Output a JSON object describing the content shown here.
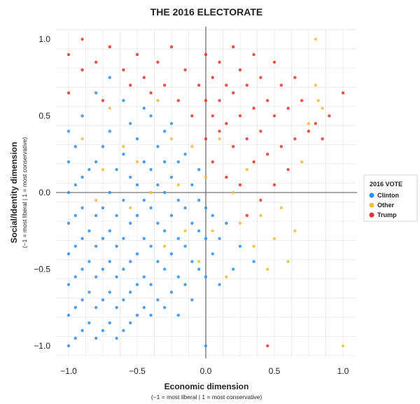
{
  "chart_data": {
    "type": "scatter",
    "title": "THE 2016 ELECTORATE",
    "xlabel": "Economic dimension",
    "xlabel_note": "(−1 = most liberal | 1 = most conservative)",
    "ylabel": "Social/Identity dimension",
    "ylabel_note": "(−1 = most liberal | 1 = most conservative)",
    "xlim": [
      -1.0,
      1.0
    ],
    "ylim": [
      -1.0,
      1.0
    ],
    "x_ticks": [
      -1.0,
      -0.5,
      0.0,
      0.5,
      1.0
    ],
    "x_tick_labels": [
      "−1.0",
      "−0.5",
      "0.0",
      "0.5",
      "1.0"
    ],
    "y_ticks": [
      -1.0,
      -0.5,
      0.0,
      0.5,
      1.0
    ],
    "y_tick_labels": [
      "−1.0",
      "−0.5",
      "0.0",
      "0.5",
      "1.0"
    ],
    "grid": true,
    "legend": {
      "title": "2016 VOTE",
      "position": "right"
    },
    "series": [
      {
        "name": "Clinton",
        "color": "#2e8fe6",
        "points": [
          [
            -1.0,
            -1.0
          ],
          [
            -1.0,
            -0.8
          ],
          [
            -1.0,
            -0.6
          ],
          [
            -1.0,
            -0.4
          ],
          [
            -1.0,
            -0.2
          ],
          [
            -1.0,
            0.0
          ],
          [
            -1.0,
            0.2
          ],
          [
            -1.0,
            0.4
          ],
          [
            -0.95,
            -0.95
          ],
          [
            -0.95,
            -0.75
          ],
          [
            -0.95,
            -0.55
          ],
          [
            -0.95,
            -0.35
          ],
          [
            -0.95,
            -0.15
          ],
          [
            -0.95,
            0.05
          ],
          [
            -0.95,
            0.3
          ],
          [
            -0.9,
            -0.9
          ],
          [
            -0.9,
            -0.7
          ],
          [
            -0.9,
            -0.5
          ],
          [
            -0.9,
            -0.3
          ],
          [
            -0.9,
            -0.1
          ],
          [
            -0.9,
            0.1
          ],
          [
            -0.9,
            0.5
          ],
          [
            -0.85,
            -0.85
          ],
          [
            -0.85,
            -0.65
          ],
          [
            -0.85,
            -0.45
          ],
          [
            -0.85,
            -0.25
          ],
          [
            -0.85,
            0.15
          ],
          [
            -0.8,
            -0.95
          ],
          [
            -0.8,
            -0.75
          ],
          [
            -0.8,
            -0.55
          ],
          [
            -0.8,
            -0.35
          ],
          [
            -0.8,
            -0.15
          ],
          [
            -0.8,
            0.2
          ],
          [
            -0.8,
            0.65
          ],
          [
            -0.75,
            -0.9
          ],
          [
            -0.75,
            -0.7
          ],
          [
            -0.75,
            -0.5
          ],
          [
            -0.75,
            -0.3
          ],
          [
            -0.75,
            -0.1
          ],
          [
            -0.75,
            0.3
          ],
          [
            -0.7,
            -0.85
          ],
          [
            -0.7,
            -0.65
          ],
          [
            -0.7,
            -0.45
          ],
          [
            -0.7,
            -0.25
          ],
          [
            -0.7,
            0.0
          ],
          [
            -0.7,
            0.4
          ],
          [
            -0.7,
            0.75
          ],
          [
            -0.65,
            -0.95
          ],
          [
            -0.65,
            -0.75
          ],
          [
            -0.65,
            -0.55
          ],
          [
            -0.65,
            -0.35
          ],
          [
            -0.65,
            -0.15
          ],
          [
            -0.65,
            0.15
          ],
          [
            -0.6,
            -0.9
          ],
          [
            -0.6,
            -0.7
          ],
          [
            -0.6,
            -0.5
          ],
          [
            -0.6,
            -0.3
          ],
          [
            -0.6,
            -0.05
          ],
          [
            -0.6,
            0.25
          ],
          [
            -0.6,
            0.6
          ],
          [
            -0.55,
            -0.85
          ],
          [
            -0.55,
            -0.65
          ],
          [
            -0.55,
            -0.45
          ],
          [
            -0.55,
            -0.2
          ],
          [
            -0.55,
            0.1
          ],
          [
            -0.55,
            0.45
          ],
          [
            -0.5,
            -0.8
          ],
          [
            -0.5,
            -0.6
          ],
          [
            -0.5,
            -0.4
          ],
          [
            -0.5,
            -0.15
          ],
          [
            -0.5,
            0.05
          ],
          [
            -0.5,
            0.35
          ],
          [
            -0.45,
            -0.75
          ],
          [
            -0.45,
            -0.55
          ],
          [
            -0.45,
            -0.3
          ],
          [
            -0.45,
            -0.05
          ],
          [
            -0.45,
            0.2
          ],
          [
            -0.45,
            0.55
          ],
          [
            -0.4,
            -0.8
          ],
          [
            -0.4,
            -0.6
          ],
          [
            -0.4,
            -0.35
          ],
          [
            -0.4,
            -0.1
          ],
          [
            -0.4,
            0.15
          ],
          [
            -0.4,
            0.5
          ],
          [
            -0.35,
            -0.7
          ],
          [
            -0.35,
            -0.45
          ],
          [
            -0.35,
            -0.2
          ],
          [
            -0.35,
            0.05
          ],
          [
            -0.35,
            0.3
          ],
          [
            -0.3,
            -0.75
          ],
          [
            -0.3,
            -0.5
          ],
          [
            -0.3,
            -0.25
          ],
          [
            -0.3,
            0.0
          ],
          [
            -0.3,
            0.2
          ],
          [
            -0.3,
            0.4
          ],
          [
            -0.25,
            -0.65
          ],
          [
            -0.25,
            -0.4
          ],
          [
            -0.25,
            -0.15
          ],
          [
            -0.25,
            0.1
          ],
          [
            -0.25,
            0.45
          ],
          [
            -0.2,
            -0.8
          ],
          [
            -0.2,
            -0.55
          ],
          [
            -0.2,
            -0.3
          ],
          [
            -0.2,
            -0.05
          ],
          [
            -0.2,
            0.2
          ],
          [
            -0.15,
            -0.6
          ],
          [
            -0.15,
            -0.35
          ],
          [
            -0.15,
            -0.1
          ],
          [
            -0.15,
            0.25
          ],
          [
            -0.1,
            -0.7
          ],
          [
            -0.1,
            -0.45
          ],
          [
            -0.1,
            -0.2
          ],
          [
            -0.1,
            0.05
          ],
          [
            -0.05,
            -0.5
          ],
          [
            -0.05,
            -0.25
          ],
          [
            -0.05,
            -0.05
          ],
          [
            -0.05,
            0.15
          ],
          [
            0.0,
            -1.0
          ],
          [
            0.0,
            -0.55
          ],
          [
            0.0,
            -0.3
          ],
          [
            0.0,
            -0.1
          ],
          [
            0.05,
            -0.4
          ],
          [
            0.05,
            -0.15
          ],
          [
            0.1,
            -0.6
          ],
          [
            0.1,
            -0.3
          ],
          [
            0.15,
            -0.2
          ],
          [
            0.2,
            -0.5
          ],
          [
            0.25,
            -0.35
          ],
          [
            0.35,
            -0.45
          ]
        ]
      },
      {
        "name": "Other",
        "color": "#e8c13e",
        "points": [
          [
            -0.9,
            0.35
          ],
          [
            -0.8,
            -0.05
          ],
          [
            -0.75,
            0.15
          ],
          [
            -0.7,
            0.55
          ],
          [
            -0.6,
            0.3
          ],
          [
            -0.55,
            -0.1
          ],
          [
            -0.5,
            0.2
          ],
          [
            -0.4,
            0.0
          ],
          [
            -0.35,
            0.6
          ],
          [
            -0.3,
            -0.35
          ],
          [
            -0.25,
            0.35
          ],
          [
            -0.2,
            0.05
          ],
          [
            -0.15,
            -0.25
          ],
          [
            -0.1,
            0.3
          ],
          [
            -0.05,
            -0.45
          ],
          [
            0.0,
            0.1
          ],
          [
            0.05,
            -0.25
          ],
          [
            0.1,
            0.35
          ],
          [
            0.15,
            -0.55
          ],
          [
            0.2,
            0.0
          ],
          [
            0.25,
            -0.2
          ],
          [
            0.3,
            0.15
          ],
          [
            0.35,
            -0.35
          ],
          [
            0.4,
            -0.15
          ],
          [
            0.45,
            -0.5
          ],
          [
            0.5,
            -0.3
          ],
          [
            0.55,
            -0.1
          ],
          [
            0.6,
            -0.45
          ],
          [
            0.65,
            -0.25
          ],
          [
            0.7,
            0.2
          ],
          [
            0.75,
            0.45
          ],
          [
            0.8,
            0.7
          ],
          [
            0.82,
            0.6
          ],
          [
            0.85,
            0.55
          ],
          [
            1.0,
            -1.0
          ],
          [
            0.8,
            1.0
          ]
        ]
      },
      {
        "name": "Trump",
        "color": "#e8322f",
        "points": [
          [
            -1.0,
            0.65
          ],
          [
            -1.0,
            0.9
          ],
          [
            -0.9,
            0.8
          ],
          [
            -0.9,
            1.0
          ],
          [
            -0.8,
            0.85
          ],
          [
            -0.75,
            0.6
          ],
          [
            -0.7,
            0.95
          ],
          [
            -0.6,
            0.8
          ],
          [
            -0.55,
            0.7
          ],
          [
            -0.5,
            0.9
          ],
          [
            -0.45,
            0.75
          ],
          [
            -0.4,
            0.65
          ],
          [
            -0.35,
            0.85
          ],
          [
            -0.3,
            0.7
          ],
          [
            -0.25,
            0.95
          ],
          [
            -0.2,
            0.6
          ],
          [
            -0.15,
            0.8
          ],
          [
            -0.1,
            0.5
          ],
          [
            -0.05,
            0.7
          ],
          [
            0.0,
            0.9
          ],
          [
            0.0,
            0.6
          ],
          [
            0.0,
            0.35
          ],
          [
            0.05,
            0.75
          ],
          [
            0.05,
            0.5
          ],
          [
            0.05,
            0.2
          ],
          [
            0.1,
            0.85
          ],
          [
            0.1,
            0.6
          ],
          [
            0.1,
            0.4
          ],
          [
            0.15,
            0.7
          ],
          [
            0.15,
            0.45
          ],
          [
            0.15,
            0.1
          ],
          [
            0.2,
            0.95
          ],
          [
            0.2,
            0.65
          ],
          [
            0.2,
            0.3
          ],
          [
            0.25,
            0.8
          ],
          [
            0.25,
            0.5
          ],
          [
            0.25,
            0.05
          ],
          [
            0.3,
            0.7
          ],
          [
            0.3,
            0.35
          ],
          [
            0.3,
            -0.15
          ],
          [
            0.35,
            0.9
          ],
          [
            0.35,
            0.55
          ],
          [
            0.35,
            0.2
          ],
          [
            0.4,
            0.75
          ],
          [
            0.4,
            0.4
          ],
          [
            0.4,
            -0.05
          ],
          [
            0.45,
            0.6
          ],
          [
            0.45,
            0.25
          ],
          [
            0.5,
            0.85
          ],
          [
            0.5,
            0.5
          ],
          [
            0.5,
            0.05
          ],
          [
            0.55,
            0.7
          ],
          [
            0.55,
            0.3
          ],
          [
            0.6,
            0.55
          ],
          [
            0.6,
            0.15
          ],
          [
            0.65,
            0.75
          ],
          [
            0.65,
            0.35
          ],
          [
            0.7,
            0.6
          ],
          [
            0.75,
            0.4
          ],
          [
            0.8,
            0.45
          ],
          [
            0.85,
            0.35
          ],
          [
            0.9,
            0.5
          ],
          [
            1.0,
            0.65
          ],
          [
            0.45,
            -1.0
          ]
        ]
      }
    ]
  }
}
